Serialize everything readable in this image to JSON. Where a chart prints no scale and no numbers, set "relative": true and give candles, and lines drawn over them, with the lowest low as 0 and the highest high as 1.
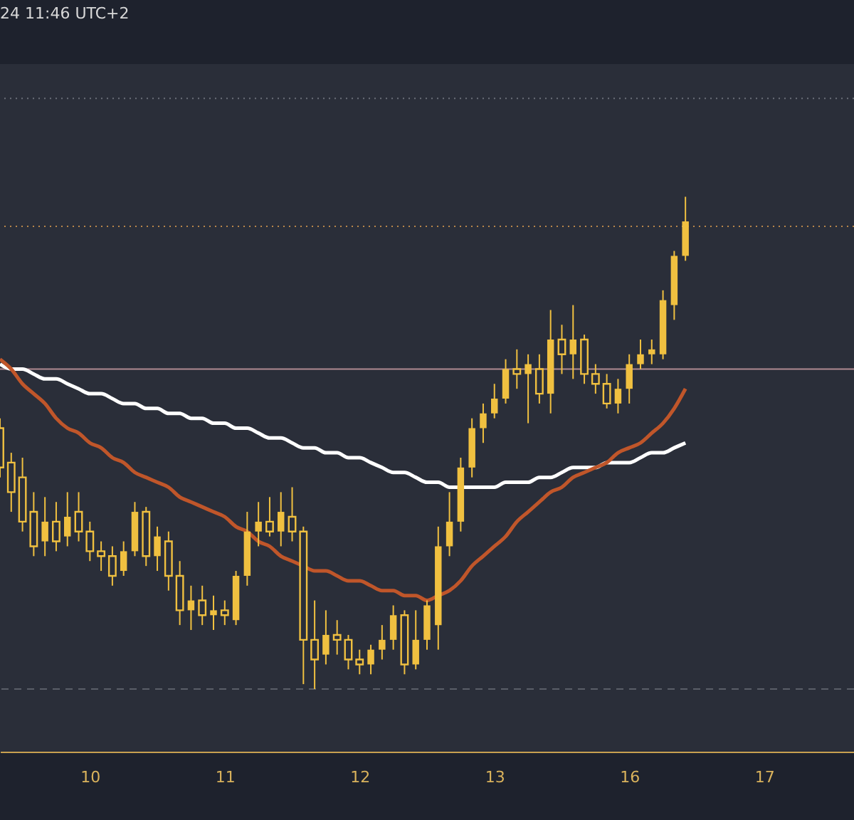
{
  "chart_data": {
    "type": "candlestick",
    "relative": true,
    "color": "#f0c040",
    "tick_labels": "x",
    "annotations": [
      "24 11:46 UTC+2"
    ],
    "categories": [
      null,
      null,
      null,
      null,
      null,
      null,
      null,
      null,
      "10",
      null,
      null,
      null,
      null,
      null,
      null,
      null,
      null,
      null,
      null,
      null,
      "11",
      null,
      null,
      null,
      null,
      null,
      null,
      null,
      null,
      null,
      null,
      null,
      "12",
      null,
      null,
      null,
      null,
      null,
      null,
      null,
      null,
      null,
      null,
      null,
      "13",
      null,
      null,
      null,
      null,
      null,
      null,
      null,
      null,
      null,
      null,
      null,
      "16",
      null,
      null,
      null,
      null,
      null,
      null,
      null,
      null,
      null,
      null,
      null,
      "17",
      null,
      null,
      null,
      null,
      null,
      null,
      null
    ],
    "ohlc": [
      [
        0.53,
        0.55,
        0.43,
        0.45
      ],
      [
        0.46,
        0.48,
        0.36,
        0.4
      ],
      [
        0.43,
        0.47,
        0.32,
        0.34
      ],
      [
        0.36,
        0.4,
        0.27,
        0.29
      ],
      [
        0.3,
        0.39,
        0.27,
        0.34
      ],
      [
        0.34,
        0.38,
        0.28,
        0.3
      ],
      [
        0.31,
        0.4,
        0.29,
        0.35
      ],
      [
        0.36,
        0.4,
        0.3,
        0.32
      ],
      [
        0.32,
        0.34,
        0.26,
        0.28
      ],
      [
        0.28,
        0.3,
        0.24,
        0.27
      ],
      [
        0.27,
        0.29,
        0.21,
        0.23
      ],
      [
        0.24,
        0.3,
        0.23,
        0.28
      ],
      [
        0.28,
        0.38,
        0.27,
        0.36
      ],
      [
        0.36,
        0.37,
        0.25,
        0.27
      ],
      [
        0.27,
        0.33,
        0.24,
        0.31
      ],
      [
        0.3,
        0.32,
        0.2,
        0.23
      ],
      [
        0.23,
        0.26,
        0.13,
        0.16
      ],
      [
        0.16,
        0.21,
        0.12,
        0.18
      ],
      [
        0.18,
        0.21,
        0.13,
        0.15
      ],
      [
        0.15,
        0.19,
        0.12,
        0.16
      ],
      [
        0.16,
        0.18,
        0.13,
        0.15
      ],
      [
        0.14,
        0.24,
        0.13,
        0.23
      ],
      [
        0.23,
        0.36,
        0.21,
        0.32
      ],
      [
        0.32,
        0.38,
        0.29,
        0.34
      ],
      [
        0.34,
        0.39,
        0.31,
        0.32
      ],
      [
        0.32,
        0.4,
        0.29,
        0.36
      ],
      [
        0.35,
        0.41,
        0.3,
        0.32
      ],
      [
        0.32,
        0.33,
        0.01,
        0.1
      ],
      [
        0.1,
        0.18,
        0.0,
        0.06
      ],
      [
        0.07,
        0.16,
        0.05,
        0.11
      ],
      [
        0.11,
        0.14,
        0.07,
        0.1
      ],
      [
        0.1,
        0.11,
        0.04,
        0.06
      ],
      [
        0.06,
        0.08,
        0.03,
        0.05
      ],
      [
        0.05,
        0.09,
        0.03,
        0.08
      ],
      [
        0.08,
        0.13,
        0.06,
        0.1
      ],
      [
        0.1,
        0.17,
        0.08,
        0.15
      ],
      [
        0.15,
        0.16,
        0.03,
        0.05
      ],
      [
        0.05,
        0.16,
        0.04,
        0.1
      ],
      [
        0.1,
        0.18,
        0.08,
        0.17
      ],
      [
        0.13,
        0.33,
        0.08,
        0.29
      ],
      [
        0.29,
        0.4,
        0.27,
        0.34
      ],
      [
        0.34,
        0.47,
        0.32,
        0.45
      ],
      [
        0.45,
        0.55,
        0.43,
        0.53
      ],
      [
        0.53,
        0.58,
        0.5,
        0.56
      ],
      [
        0.56,
        0.62,
        0.55,
        0.59
      ],
      [
        0.59,
        0.67,
        0.58,
        0.65
      ],
      [
        0.65,
        0.69,
        0.61,
        0.64
      ],
      [
        0.64,
        0.68,
        0.54,
        0.66
      ],
      [
        0.65,
        0.68,
        0.58,
        0.6
      ],
      [
        0.6,
        0.77,
        0.56,
        0.71
      ],
      [
        0.71,
        0.74,
        0.64,
        0.68
      ],
      [
        0.68,
        0.78,
        0.63,
        0.71
      ],
      [
        0.71,
        0.72,
        0.62,
        0.64
      ],
      [
        0.64,
        0.66,
        0.6,
        0.62
      ],
      [
        0.62,
        0.64,
        0.57,
        0.58
      ],
      [
        0.58,
        0.63,
        0.56,
        0.61
      ],
      [
        0.61,
        0.68,
        0.58,
        0.66
      ],
      [
        0.66,
        0.71,
        0.65,
        0.68
      ],
      [
        0.68,
        0.71,
        0.66,
        0.69
      ],
      [
        0.68,
        0.81,
        0.67,
        0.79
      ],
      [
        0.78,
        0.89,
        0.75,
        0.88
      ],
      [
        0.88,
        1.0,
        0.87,
        0.95
      ],
      null,
      null,
      null,
      null,
      null,
      null,
      null,
      null,
      null,
      null,
      null,
      null,
      null,
      null
    ],
    "series": [
      {
        "type": "line",
        "color": "#ffffff",
        "values": [
          0.66,
          0.65,
          0.65,
          0.64,
          0.63,
          0.63,
          0.62,
          0.61,
          0.6,
          0.6,
          0.59,
          0.58,
          0.58,
          0.57,
          0.57,
          0.56,
          0.56,
          0.55,
          0.55,
          0.54,
          0.54,
          0.53,
          0.53,
          0.52,
          0.51,
          0.51,
          0.5,
          0.49,
          0.49,
          0.48,
          0.48,
          0.47,
          0.47,
          0.46,
          0.45,
          0.44,
          0.44,
          0.43,
          0.42,
          0.42,
          0.41,
          0.41,
          0.41,
          0.41,
          0.41,
          0.42,
          0.42,
          0.42,
          0.43,
          0.43,
          0.44,
          0.45,
          0.45,
          0.45,
          0.46,
          0.46,
          0.46,
          0.47,
          0.48,
          0.48,
          0.49,
          0.5,
          null,
          null,
          null,
          null,
          null,
          null,
          null,
          null,
          null,
          null,
          null,
          null,
          null,
          null
        ]
      },
      {
        "type": "line",
        "color": "#c0562a",
        "values": [
          0.67,
          0.65,
          0.62,
          0.6,
          0.58,
          0.55,
          0.53,
          0.52,
          0.5,
          0.49,
          0.47,
          0.46,
          0.44,
          0.43,
          0.42,
          0.41,
          0.39,
          0.38,
          0.37,
          0.36,
          0.35,
          0.33,
          0.32,
          0.3,
          0.29,
          0.27,
          0.26,
          0.25,
          0.24,
          0.24,
          0.23,
          0.22,
          0.22,
          0.21,
          0.2,
          0.2,
          0.19,
          0.19,
          0.18,
          0.19,
          0.2,
          0.22,
          0.25,
          0.27,
          0.29,
          0.31,
          0.34,
          0.36,
          0.38,
          0.4,
          0.41,
          0.43,
          0.44,
          0.45,
          0.46,
          0.48,
          0.49,
          0.5,
          0.52,
          0.54,
          0.57,
          0.61,
          null,
          null,
          null,
          null,
          null,
          null,
          null,
          null,
          null,
          null,
          null,
          null,
          null,
          null
        ]
      }
    ],
    "ref_lines": [
      {
        "axis": "y",
        "value": 1.2,
        "color": "#6a6e78",
        "line_style": "dotted"
      },
      {
        "axis": "y",
        "value": 0.94,
        "color": "#b8864a",
        "line_style": "dotted"
      },
      {
        "axis": "y",
        "value": 0.65,
        "color": "#b08a92",
        "line_style": "solid"
      },
      {
        "axis": "y",
        "value": 0.0,
        "color": "#5a5e68",
        "line_style": "dashed"
      }
    ]
  }
}
